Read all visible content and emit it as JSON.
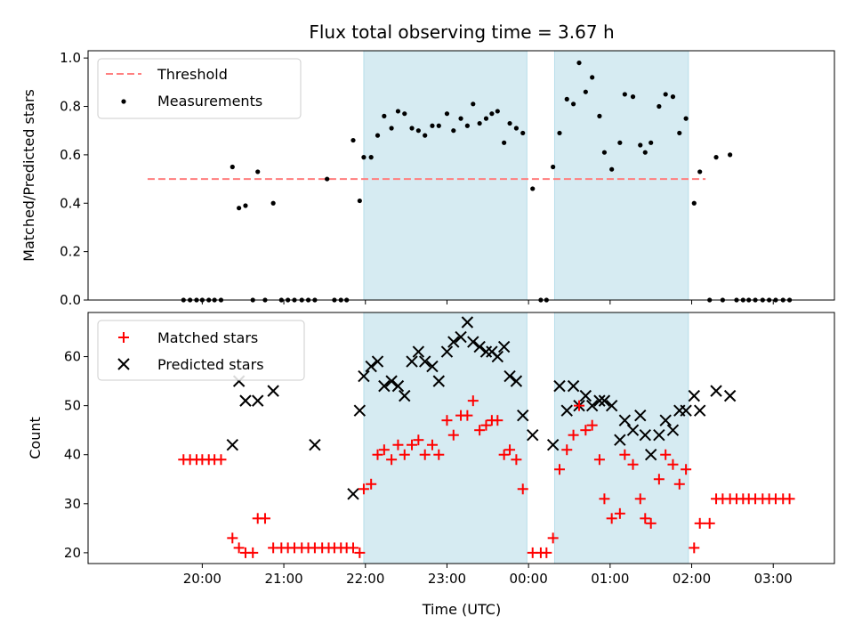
{
  "chart_data": [
    {
      "type": "scatter",
      "title": "Flux total observing time = 3.67 h",
      "xlabel": "",
      "ylabel": "Matched/Predicted stars",
      "x_unit": "hours (UTC, continuous past midnight)",
      "xlim": [
        18.6,
        27.75
      ],
      "ylim": [
        0.0,
        1.03
      ],
      "yticks": [
        0.0,
        0.2,
        0.4,
        0.6,
        0.8,
        1.0
      ],
      "ytick_labels": [
        "0.0",
        "0.2",
        "0.4",
        "0.6",
        "0.8",
        "1.0"
      ],
      "shaded_spans": [
        [
          21.98,
          23.98
        ],
        [
          24.32,
          25.96
        ]
      ],
      "legend_position": "upper-left",
      "threshold": {
        "name": "Threshold",
        "value": 0.5,
        "x_start": 19.33,
        "x_end": 26.17,
        "color": "#ff7f7f"
      },
      "series": [
        {
          "name": "Measurements",
          "color": "#000000",
          "x": [
            19.77,
            19.85,
            19.93,
            20.0,
            20.08,
            20.15,
            20.23,
            20.37,
            20.45,
            20.53,
            20.62,
            20.68,
            20.77,
            20.87,
            20.97,
            21.05,
            21.13,
            21.22,
            21.3,
            21.38,
            21.53,
            21.62,
            21.7,
            21.77,
            21.85,
            21.93,
            21.98,
            22.07,
            22.15,
            22.23,
            22.32,
            22.4,
            22.48,
            22.57,
            22.65,
            22.73,
            22.82,
            22.9,
            23.0,
            23.08,
            23.17,
            23.25,
            23.32,
            23.4,
            23.48,
            23.55,
            23.62,
            23.7,
            23.77,
            23.85,
            23.93,
            24.05,
            24.15,
            24.22,
            24.3,
            24.38,
            24.47,
            24.55,
            24.62,
            24.7,
            24.78,
            24.87,
            24.93,
            25.02,
            25.12,
            25.18,
            25.28,
            25.37,
            25.43,
            25.5,
            25.6,
            25.68,
            25.77,
            25.85,
            25.93,
            26.03,
            26.1,
            26.22,
            26.3,
            26.38,
            26.47,
            26.55,
            26.63,
            26.7,
            26.78,
            26.87,
            26.95,
            27.03,
            27.12,
            27.2
          ],
          "y": [
            0,
            0,
            0,
            0,
            0,
            0,
            0,
            0.55,
            0.38,
            0.39,
            0,
            0.53,
            0,
            0.4,
            0,
            0,
            0,
            0,
            0,
            0,
            0.5,
            0,
            0,
            0,
            0.66,
            0.41,
            0.59,
            0.59,
            0.68,
            0.76,
            0.71,
            0.78,
            0.77,
            0.71,
            0.7,
            0.68,
            0.72,
            0.72,
            0.77,
            0.7,
            0.75,
            0.72,
            0.81,
            0.73,
            0.75,
            0.77,
            0.78,
            0.65,
            0.73,
            0.71,
            0.69,
            0.46,
            0,
            0,
            0.55,
            0.69,
            0.83,
            0.81,
            0.98,
            0.86,
            0.92,
            0.76,
            0.61,
            0.54,
            0.65,
            0.85,
            0.84,
            0.64,
            0.61,
            0.65,
            0.8,
            0.85,
            0.84,
            0.69,
            0.75,
            0.4,
            0.53,
            0,
            0.59,
            0,
            0.6,
            0,
            0,
            0,
            0,
            0,
            0,
            0,
            0,
            0
          ]
        }
      ]
    },
    {
      "type": "scatter",
      "title": "",
      "xlabel": "Time (UTC)",
      "ylabel": "Count",
      "x_unit": "hours (UTC, continuous past midnight)",
      "xlim": [
        18.6,
        27.75
      ],
      "ylim": [
        17.8,
        69.0
      ],
      "xticks": [
        20,
        21,
        22,
        23,
        24,
        25,
        26,
        27
      ],
      "xtick_labels": [
        "20:00",
        "21:00",
        "22:00",
        "23:00",
        "00:00",
        "01:00",
        "02:00",
        "03:00"
      ],
      "yticks": [
        20,
        30,
        40,
        50,
        60
      ],
      "ytick_labels": [
        "20",
        "30",
        "40",
        "50",
        "60"
      ],
      "shaded_spans": [
        [
          21.98,
          23.98
        ],
        [
          24.32,
          25.96
        ]
      ],
      "legend_position": "upper-left",
      "series": [
        {
          "name": "Matched stars",
          "marker": "plus",
          "color": "#ff0000",
          "x": [
            19.77,
            19.85,
            19.93,
            20.0,
            20.08,
            20.15,
            20.23,
            20.37,
            20.45,
            20.53,
            20.62,
            20.68,
            20.77,
            20.87,
            20.97,
            21.05,
            21.13,
            21.22,
            21.3,
            21.38,
            21.47,
            21.55,
            21.62,
            21.7,
            21.77,
            21.85,
            21.93,
            21.98,
            22.07,
            22.15,
            22.23,
            22.32,
            22.4,
            22.48,
            22.57,
            22.65,
            22.73,
            22.82,
            22.9,
            23.0,
            23.08,
            23.17,
            23.25,
            23.32,
            23.4,
            23.48,
            23.55,
            23.62,
            23.7,
            23.77,
            23.85,
            23.93,
            24.05,
            24.15,
            24.22,
            24.3,
            24.38,
            24.47,
            24.55,
            24.62,
            24.7,
            24.78,
            24.87,
            24.93,
            25.02,
            25.12,
            25.18,
            25.28,
            25.37,
            25.43,
            25.5,
            25.6,
            25.68,
            25.77,
            25.85,
            25.93,
            26.03,
            26.1,
            26.22,
            26.3,
            26.38,
            26.47,
            26.55,
            26.63,
            26.7,
            26.78,
            26.87,
            26.95,
            27.03,
            27.12,
            27.2
          ],
          "y": [
            39,
            39,
            39,
            39,
            39,
            39,
            39,
            23,
            21,
            20,
            20,
            27,
            27,
            21,
            21,
            21,
            21,
            21,
            21,
            21,
            21,
            21,
            21,
            21,
            21,
            21,
            20,
            33,
            34,
            40,
            41,
            39,
            42,
            40,
            42,
            43,
            40,
            42,
            40,
            47,
            44,
            48,
            48,
            51,
            45,
            46,
            47,
            47,
            40,
            41,
            39,
            33,
            20,
            20,
            20,
            23,
            37,
            41,
            44,
            50,
            45,
            46,
            39,
            31,
            27,
            28,
            40,
            38,
            31,
            27,
            26,
            35,
            40,
            38,
            34,
            37,
            21,
            26,
            26,
            31,
            31,
            31,
            31,
            31,
            31,
            31,
            31,
            31,
            31,
            31,
            31
          ]
        },
        {
          "name": "Predicted stars",
          "marker": "x",
          "color": "#000000",
          "x": [
            20.37,
            20.45,
            20.53,
            20.68,
            20.87,
            21.38,
            21.85,
            21.93,
            21.98,
            22.07,
            22.15,
            22.23,
            22.32,
            22.4,
            22.48,
            22.57,
            22.65,
            22.73,
            22.82,
            22.9,
            23.0,
            23.08,
            23.17,
            23.25,
            23.32,
            23.4,
            23.48,
            23.55,
            23.62,
            23.7,
            23.77,
            23.85,
            23.93,
            24.05,
            24.3,
            24.38,
            24.47,
            24.55,
            24.62,
            24.7,
            24.78,
            24.87,
            24.93,
            25.02,
            25.12,
            25.18,
            25.28,
            25.37,
            25.43,
            25.5,
            25.6,
            25.68,
            25.77,
            25.85,
            25.93,
            26.03,
            26.1,
            26.3,
            26.47
          ],
          "y": [
            42,
            55,
            51,
            51,
            53,
            42,
            32,
            49,
            56,
            58,
            59,
            54,
            55,
            54,
            52,
            59,
            61,
            59,
            58,
            55,
            61,
            63,
            64,
            67,
            63,
            62,
            61,
            61,
            60,
            62,
            56,
            55,
            48,
            44,
            42,
            54,
            49,
            54,
            50,
            52,
            50,
            51,
            51,
            50,
            43,
            47,
            45,
            48,
            44,
            40,
            44,
            47,
            45,
            49,
            49,
            52,
            49,
            53,
            52
          ]
        }
      ]
    }
  ]
}
